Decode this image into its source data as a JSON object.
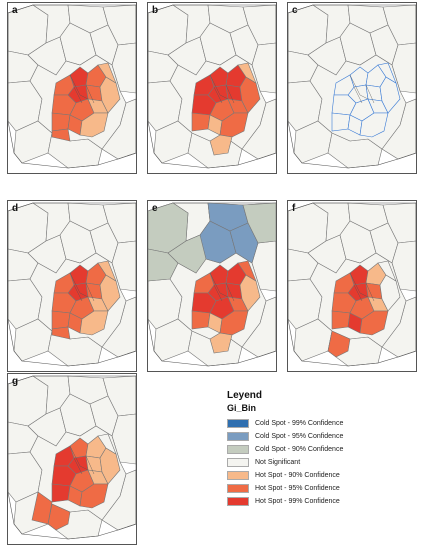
{
  "panels": [
    {
      "id": "a",
      "label": "a",
      "variant": "hot1"
    },
    {
      "id": "b",
      "label": "b",
      "variant": "hot3"
    },
    {
      "id": "c",
      "label": "c",
      "variant": "outline"
    },
    {
      "id": "d",
      "label": "d",
      "variant": "hot1"
    },
    {
      "id": "e",
      "label": "e",
      "variant": "cold"
    },
    {
      "id": "f",
      "label": "f",
      "variant": "hotSW"
    },
    {
      "id": "g",
      "label": "g",
      "variant": "hotSW2"
    }
  ],
  "legend": {
    "title": "Leyend",
    "subtitle": "Gi_Bin",
    "items": [
      {
        "label": "Cold Spot - 99% Confidence",
        "color": "#2f6fb0"
      },
      {
        "label": "Cold Spot - 95% Confidence",
        "color": "#7a9cc0"
      },
      {
        "label": "Cold Spot - 90% Confidence",
        "color": "#c4ccbf"
      },
      {
        "label": "Not Significant",
        "color": "#f4f4f0"
      },
      {
        "label": "Hot Spot - 90% Confidence",
        "color": "#f7b98a"
      },
      {
        "label": "Hot Spot - 95% Confidence",
        "color": "#ef6b45"
      },
      {
        "label": "Hot Spot - 99% Confidence",
        "color": "#e43a2f"
      }
    ]
  }
}
